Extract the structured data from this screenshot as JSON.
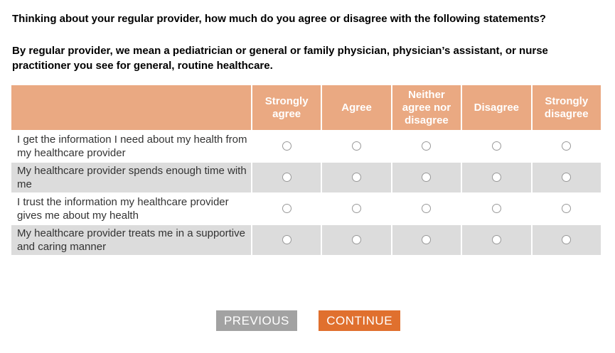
{
  "question": "Thinking about your regular provider, how much do you agree or disagree with the following statements?",
  "description": "By regular provider, we mean a pediatrician or general or family physician, physician’s assistant, or nurse practitioner you see for general, routine healthcare.",
  "matrix": {
    "columns": [
      "Strongly agree",
      "Agree",
      "Neither agree nor disagree",
      "Disagree",
      "Strongly disagree"
    ],
    "rows": [
      "I get the information I need about my health from my healthcare provider",
      "My healthcare provider spends enough time with me",
      "I trust the information my healthcare provider gives me about my health",
      "My healthcare provider treats me in a supportive and caring manner"
    ],
    "selected": [
      null,
      null,
      null,
      null
    ]
  },
  "buttons": {
    "previous": "PREVIOUS",
    "continue": "CONTINUE"
  },
  "colors": {
    "header_bg": "#EAA982",
    "row_alt_bg": "#DCDCDC",
    "previous_bg": "#A2A2A2",
    "continue_bg": "#E0702E",
    "radio_border": "#999999"
  }
}
